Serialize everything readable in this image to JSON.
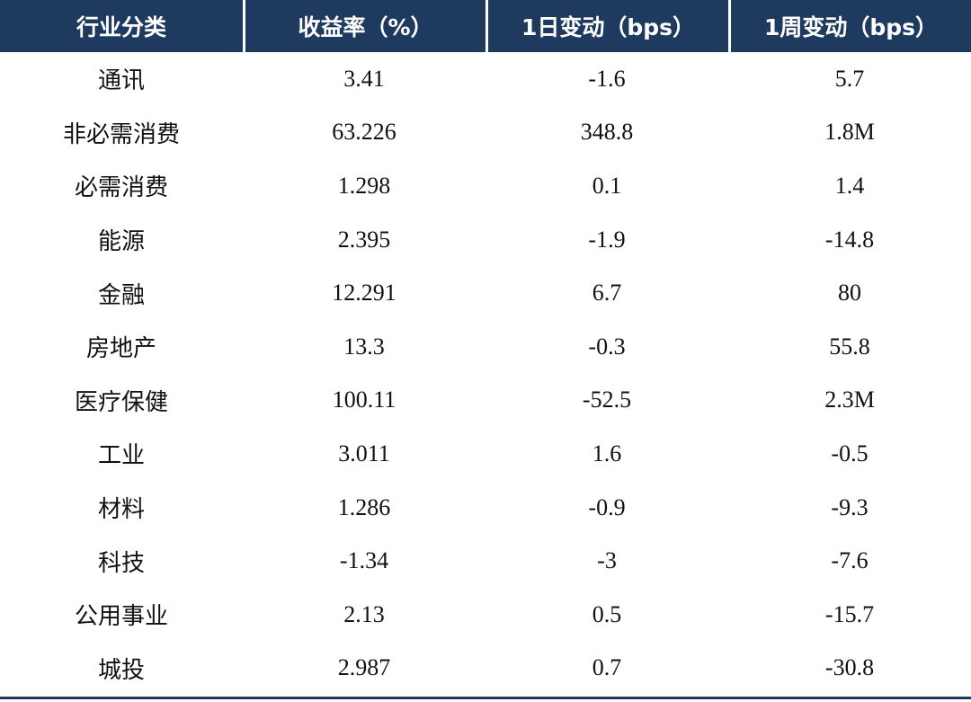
{
  "chart_data": {
    "type": "table",
    "columns": [
      "行业分类",
      "收益率（%）",
      "1日变动（bps）",
      "1周变动（bps）"
    ],
    "rows": [
      [
        "通讯",
        "3.41",
        "-1.6",
        "5.7"
      ],
      [
        "非必需消费",
        "63.226",
        "348.8",
        "1.8M"
      ],
      [
        "必需消费",
        "1.298",
        "0.1",
        "1.4"
      ],
      [
        "能源",
        "2.395",
        "-1.9",
        "-14.8"
      ],
      [
        "金融",
        "12.291",
        "6.7",
        "80"
      ],
      [
        "房地产",
        "13.3",
        "-0.3",
        "55.8"
      ],
      [
        "医疗保健",
        "100.11",
        "-52.5",
        "2.3M"
      ],
      [
        "工业",
        "3.011",
        "1.6",
        "-0.5"
      ],
      [
        "材料",
        "1.286",
        "-0.9",
        "-9.3"
      ],
      [
        "科技",
        "-1.34",
        "-3",
        "-7.6"
      ],
      [
        "公用事业",
        "2.13",
        "0.5",
        "-15.7"
      ],
      [
        "城投",
        "2.987",
        "0.7",
        "-30.8"
      ]
    ]
  },
  "colors": {
    "header_bg": "#1f3a5f",
    "header_text": "#ffffff",
    "cell_text": "#111111"
  }
}
